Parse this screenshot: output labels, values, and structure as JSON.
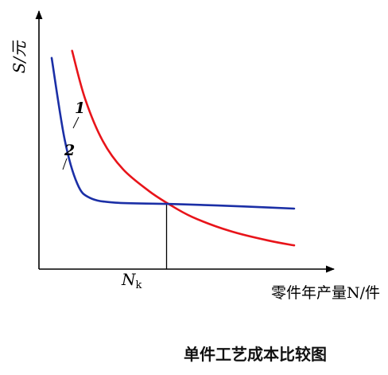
{
  "chart_data": {
    "type": "line",
    "title": "单件工艺成本比较图",
    "ylabel": "S/元",
    "xlabel": "零件年产量N/件",
    "x_marker_label": "N",
    "x_marker_subscript": "k",
    "series": [
      {
        "name": "1",
        "color": "#e8141a",
        "points": [
          [
            0.13,
            0.92
          ],
          [
            0.18,
            0.72
          ],
          [
            0.25,
            0.54
          ],
          [
            0.33,
            0.42
          ],
          [
            0.43,
            0.33
          ],
          [
            0.5,
            0.28
          ],
          [
            0.6,
            0.22
          ],
          [
            0.75,
            0.16
          ],
          [
            0.9,
            0.12
          ],
          [
            1.0,
            0.1
          ]
        ]
      },
      {
        "name": "2",
        "color": "#1b2fa6",
        "points": [
          [
            0.05,
            0.89
          ],
          [
            0.1,
            0.55
          ],
          [
            0.15,
            0.36
          ],
          [
            0.2,
            0.3
          ],
          [
            0.3,
            0.28
          ],
          [
            0.5,
            0.275
          ],
          [
            0.7,
            0.268
          ],
          [
            0.85,
            0.262
          ],
          [
            1.0,
            0.255
          ]
        ]
      }
    ],
    "intersection": {
      "x": 0.5,
      "y": 0.28
    },
    "grid": false,
    "legend": "inline numeric labels on curves"
  }
}
